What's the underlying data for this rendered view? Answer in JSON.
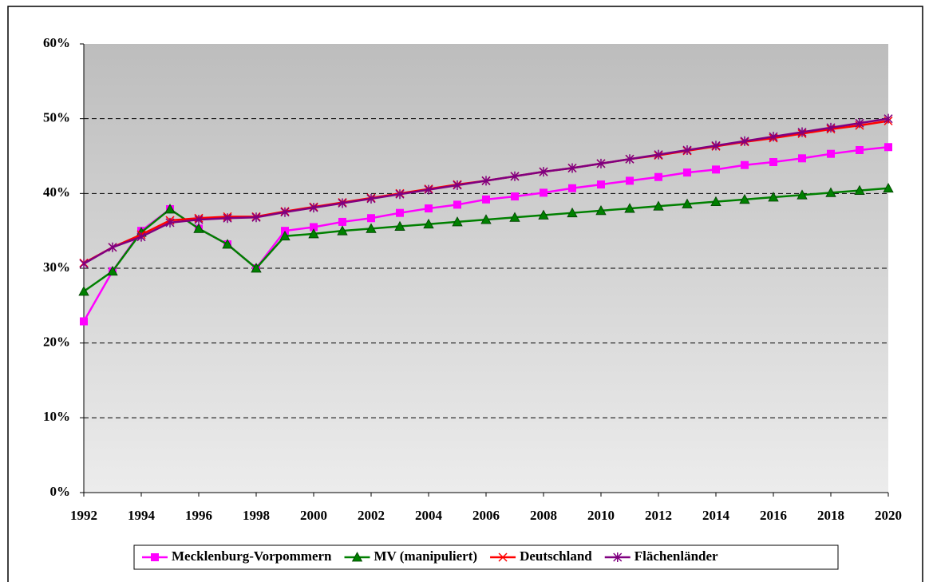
{
  "chart_data": {
    "type": "line",
    "x": [
      1992,
      1993,
      1994,
      1995,
      1996,
      1997,
      1998,
      1999,
      2000,
      2001,
      2002,
      2003,
      2004,
      2005,
      2006,
      2007,
      2008,
      2009,
      2010,
      2011,
      2012,
      2013,
      2014,
      2015,
      2016,
      2017,
      2018,
      2019,
      2020
    ],
    "xlim": [
      1992,
      2020
    ],
    "xticks": [
      1992,
      1994,
      1996,
      1998,
      2000,
      2002,
      2004,
      2006,
      2008,
      2010,
      2012,
      2014,
      2016,
      2018,
      2020
    ],
    "ylim": [
      0,
      60
    ],
    "yticks": [
      {
        "value": 0,
        "label": "0%"
      },
      {
        "value": 10,
        "label": "10%"
      },
      {
        "value": 20,
        "label": "20%"
      },
      {
        "value": 30,
        "label": "30%"
      },
      {
        "value": 40,
        "label": "40%"
      },
      {
        "value": 50,
        "label": "50%"
      },
      {
        "value": 60,
        "label": "60%"
      }
    ],
    "grid": true,
    "legend": "bottom",
    "series": [
      {
        "name": "Mecklenburg-Vorpommern",
        "color": "#ff00ff",
        "marker": "square",
        "values": [
          22.9,
          29.6,
          35.0,
          37.9,
          35.3,
          33.2,
          30.0,
          35.0,
          35.5,
          36.2,
          36.7,
          37.4,
          38.0,
          38.5,
          39.2,
          39.6,
          40.1,
          40.7,
          41.2,
          41.7,
          42.2,
          42.8,
          43.2,
          43.8,
          44.2,
          44.7,
          45.3,
          45.8,
          46.2
        ]
      },
      {
        "name": "MV (manipuliert)",
        "color": "#008000",
        "marker": "triangle",
        "values": [
          26.9,
          29.6,
          34.8,
          37.9,
          35.3,
          33.2,
          30.0,
          34.3,
          34.6,
          35.0,
          35.3,
          35.6,
          35.9,
          36.2,
          36.5,
          36.8,
          37.1,
          37.4,
          37.7,
          38.0,
          38.3,
          38.6,
          38.9,
          39.2,
          39.5,
          39.8,
          40.1,
          40.4,
          40.7
        ]
      },
      {
        "name": "Deutschland",
        "color": "#ff0000",
        "marker": "x",
        "values": [
          30.7,
          32.8,
          34.5,
          36.4,
          36.7,
          36.9,
          36.9,
          37.6,
          38.2,
          38.8,
          39.4,
          40.0,
          40.6,
          41.2,
          41.7,
          42.3,
          42.9,
          43.4,
          44.0,
          44.6,
          45.1,
          45.7,
          46.3,
          46.9,
          47.4,
          48.0,
          48.6,
          49.1,
          49.7
        ]
      },
      {
        "name": "Flächenländer",
        "color": "#800080",
        "marker": "star",
        "values": [
          30.6,
          32.8,
          34.2,
          36.1,
          36.5,
          36.7,
          36.8,
          37.5,
          38.1,
          38.7,
          39.3,
          39.9,
          40.5,
          41.1,
          41.7,
          42.3,
          42.9,
          43.4,
          44.0,
          44.6,
          45.2,
          45.8,
          46.4,
          47.0,
          47.6,
          48.2,
          48.8,
          49.4,
          50.0
        ]
      }
    ]
  }
}
